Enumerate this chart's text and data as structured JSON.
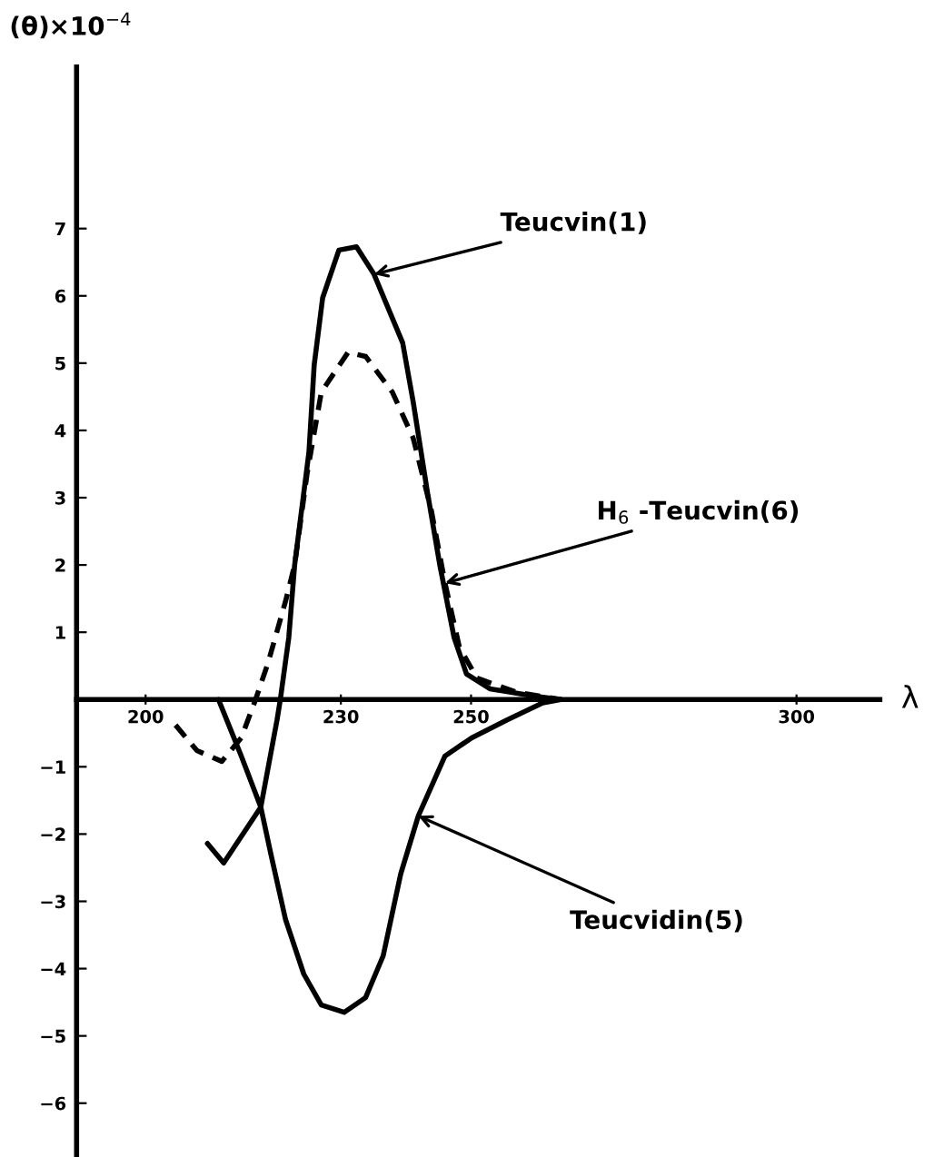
{
  "chart_data": {
    "type": "line",
    "xlabel": "λ",
    "ylabel": "(θ)×10$^{−4}$",
    "xlim": [
      189.4,
      312.8
    ],
    "ylim": [
      -6.8,
      9.4
    ],
    "xticks": [
      200,
      230,
      250,
      300
    ],
    "yticks": [
      -6,
      -5,
      -4,
      -3,
      -2,
      -1,
      1,
      2,
      3,
      4,
      5,
      6,
      7
    ],
    "grid": false,
    "legend": false,
    "marker": "none",
    "series": [
      {
        "color": "#000000",
        "line_style": "solid",
        "x": [
          209.5,
          212,
          217.7,
          220.2,
          220.7,
          222,
          222.9,
          225.1,
          225.9,
          227.2,
          229.7,
          232.4,
          235.1,
          239.5,
          241.1,
          243.3,
          245.2,
          247.4,
          249.3,
          252.9,
          259.7,
          263.8
        ],
        "values": [
          -2.14,
          -2.43,
          -1.6,
          -0.3,
          0,
          0.92,
          2.0,
          3.68,
          4.97,
          5.97,
          6.68,
          6.73,
          6.32,
          5.3,
          4.43,
          3.08,
          2.0,
          0.92,
          0.38,
          0.16,
          0.05,
          0
        ]
      },
      {
        "color": "#000000",
        "line_style": "dashed",
        "x": [
          204.6,
          207.9,
          211.7,
          214.7,
          216.9,
          218.8,
          221.5,
          222.9,
          224.8,
          227,
          231.1,
          233.8,
          237.9,
          241.1,
          243.9,
          246,
          248.2,
          250.9,
          256.9,
          263.8
        ],
        "values": [
          -0.38,
          -0.76,
          -0.92,
          -0.57,
          0,
          0.54,
          1.46,
          2.0,
          3.35,
          4.57,
          5.16,
          5.1,
          4.57,
          3.89,
          2.81,
          1.73,
          0.78,
          0.32,
          0.11,
          0
        ]
      },
      {
        "color": "#000000",
        "line_style": "solid",
        "x": [
          211.2,
          214.7,
          217.7,
          219.3,
          221.5,
          224.3,
          227,
          230.5,
          233.8,
          236.5,
          239.2,
          241.9,
          246,
          250.1,
          255.6,
          261,
          263.8
        ],
        "values": [
          0,
          -0.84,
          -1.6,
          -2.32,
          -3.27,
          -4.08,
          -4.54,
          -4.65,
          -4.43,
          -3.81,
          -2.59,
          -1.73,
          -0.84,
          -0.57,
          -0.3,
          -0.05,
          0
        ]
      }
    ],
    "annotations": [
      {
        "text": "Teucvin(1)",
        "x": 235.1,
        "y": 6.32
      },
      {
        "text": "H$_{6}$ -Teucvin(6)",
        "x": 246,
        "y": 1.73
      },
      {
        "text": "Teucvidin(5)",
        "x": 241.9,
        "y": -1.73
      }
    ]
  }
}
